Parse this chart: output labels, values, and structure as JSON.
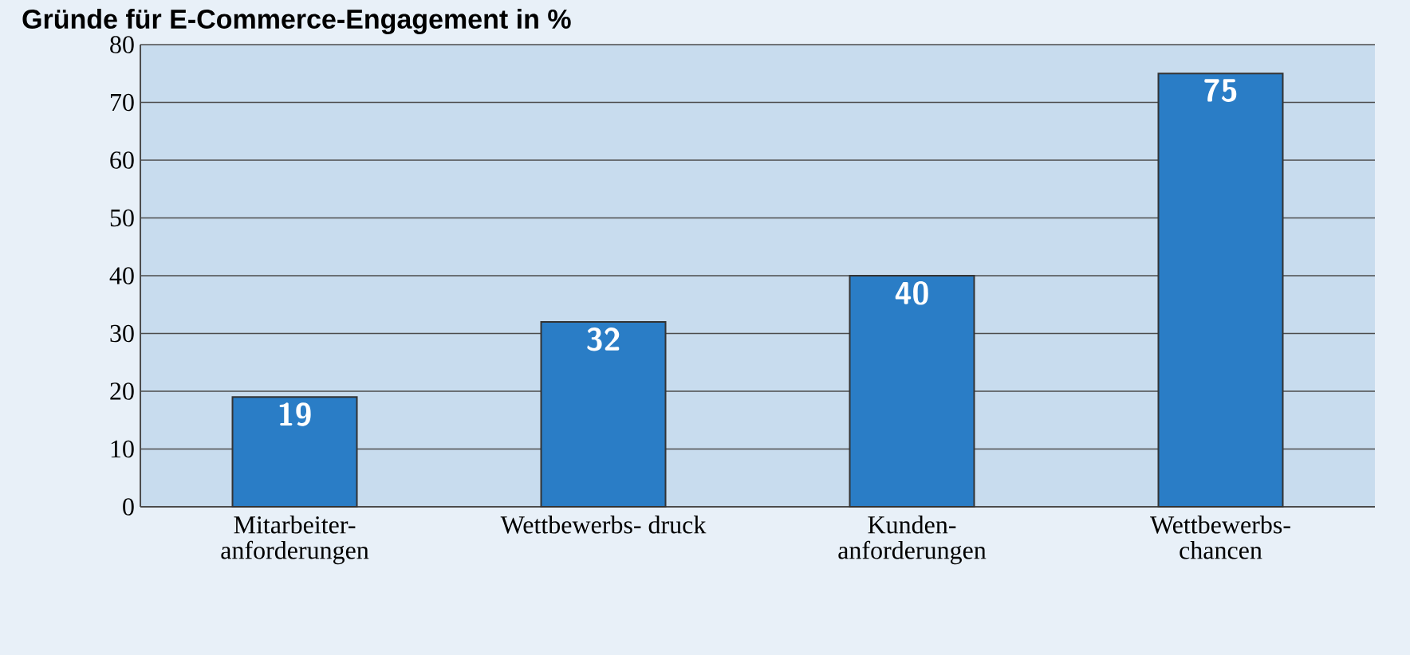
{
  "chart_data": {
    "type": "bar",
    "title": "Gründe für E-Commerce-Engagement in %",
    "categories": [
      "Mitarbeiter- anforderungen",
      "Wettbewerbs- druck",
      "Kunden- anforderungen",
      "Wettbewerbs- chancen"
    ],
    "values": [
      19,
      32,
      40,
      75
    ],
    "color": "#2a7dc6",
    "ylim": [
      0,
      80
    ],
    "yticks": [
      0,
      10,
      20,
      30,
      40,
      50,
      60,
      70,
      80
    ],
    "grid": "y",
    "data_labels": true
  }
}
